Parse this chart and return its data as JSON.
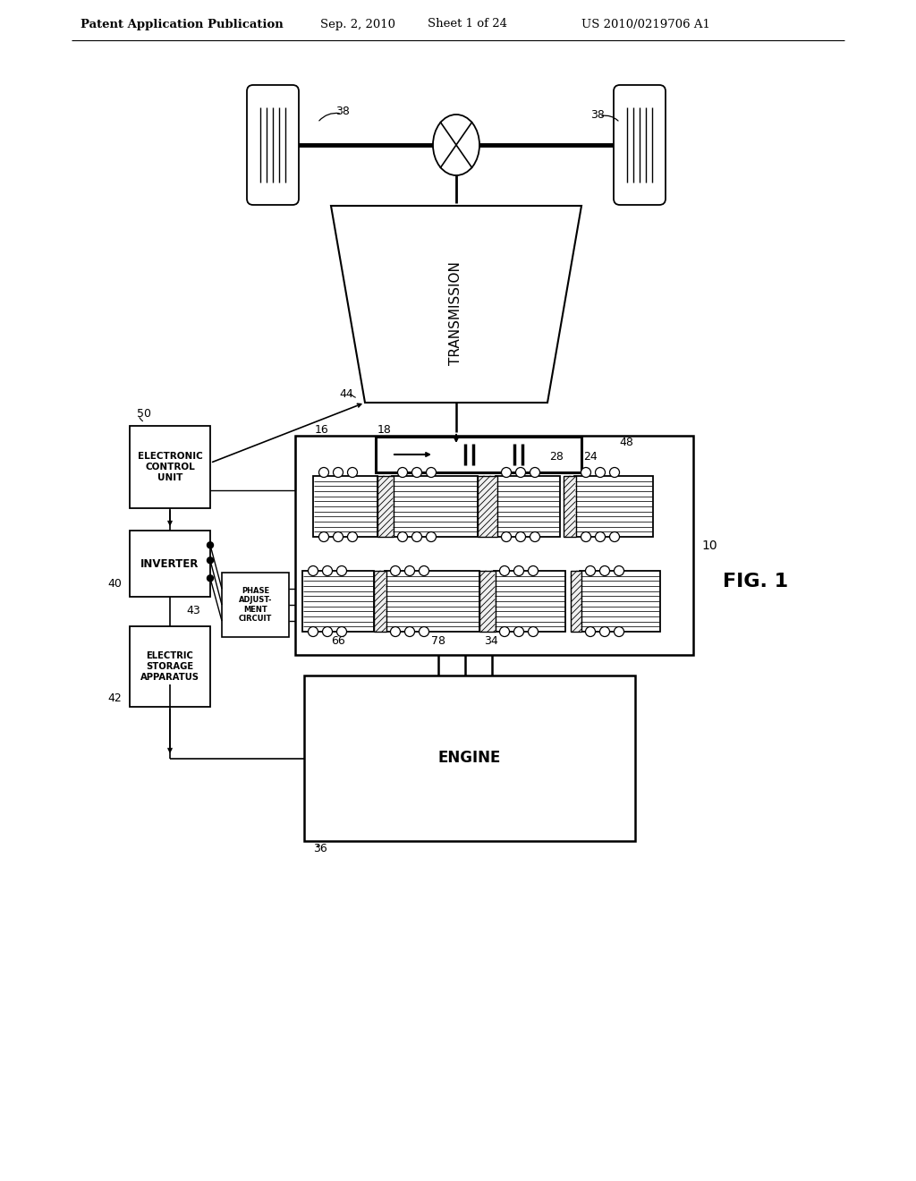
{
  "bg_color": "#ffffff",
  "line_color": "#000000",
  "header_left": "Patent Application Publication",
  "header_mid": "Sep. 2, 2010   Sheet 1 of 24",
  "header_right": "US 2010/0219706 A1",
  "fig_label": "FIG. 1",
  "labels": {
    "transmission": "TRANSMISSION",
    "engine": "ENGINE",
    "inverter": "INVERTER",
    "ecu": "ELECTRONIC\nCONTROL\nUNIT",
    "esa": "ELECTRIC\nSTORAGE\nAPPARATUS",
    "phase": "PHASE\nADJUST-\nMENT\nCIRCUIT"
  }
}
